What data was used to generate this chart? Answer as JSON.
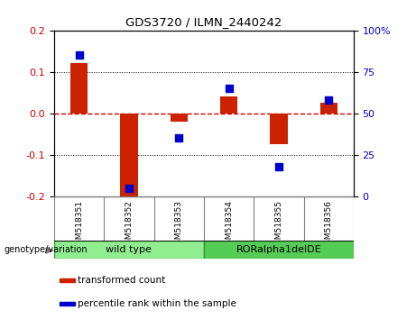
{
  "title": "GDS3720 / ILMN_2440242",
  "samples": [
    "GSM518351",
    "GSM518352",
    "GSM518353",
    "GSM518354",
    "GSM518355",
    "GSM518356"
  ],
  "transformed_count": [
    0.12,
    -0.205,
    -0.02,
    0.04,
    -0.075,
    0.025
  ],
  "percentile_rank": [
    85,
    5,
    35,
    65,
    18,
    58
  ],
  "ylim_left": [
    -0.2,
    0.2
  ],
  "ylim_right": [
    0,
    100
  ],
  "yticks_left": [
    -0.2,
    -0.1,
    0.0,
    0.1,
    0.2
  ],
  "yticks_right": [
    0,
    25,
    50,
    75,
    100
  ],
  "ytick_right_labels": [
    "0",
    "25",
    "50",
    "75",
    "100%"
  ],
  "bar_color": "#cc2200",
  "dot_color": "#0000cc",
  "zero_line_color": "#cc0000",
  "grid_color": "#000000",
  "groups": [
    {
      "label": "wild type",
      "indices": [
        0,
        1,
        2
      ],
      "color": "#90ee90"
    },
    {
      "label": "RORalpha1delDE",
      "indices": [
        3,
        4,
        5
      ],
      "color": "#55cc55"
    }
  ],
  "group_label_prefix": "genotype/variation",
  "legend_items": [
    {
      "label": "transformed count",
      "color": "#cc2200"
    },
    {
      "label": "percentile rank within the sample",
      "color": "#0000cc"
    }
  ],
  "bar_width": 0.35,
  "dot_size": 40
}
